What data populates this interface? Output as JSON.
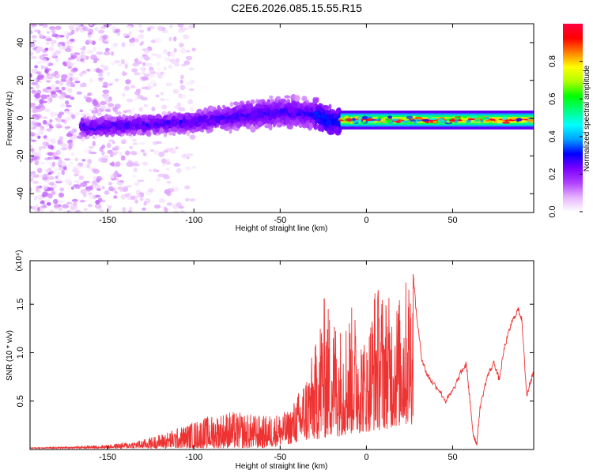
{
  "title": "C2E6.2026.085.15.55.R15",
  "chart_data": [
    {
      "id": "spectrogram",
      "type": "heatmap",
      "xlabel": "Height of straight line (km)",
      "ylabel": "Frequency (Hz)",
      "xlim": [
        -195,
        97
      ],
      "ylim": [
        -50,
        50
      ],
      "xticks": [
        "-150",
        "-100",
        "-50",
        "0",
        "50"
      ],
      "xtick_values": [
        -150,
        -100,
        -50,
        0,
        50
      ],
      "yticks": [
        "-40",
        "-20",
        "0",
        "20",
        "40"
      ],
      "ytick_values": [
        -40,
        -20,
        0,
        20,
        40
      ],
      "colorbar": {
        "label": "Normalized spectral amplitude",
        "range": [
          0,
          1
        ],
        "ticks": [
          "0.0",
          "0.2",
          "0.4",
          "0.6",
          "0.8"
        ],
        "tick_values": [
          0.0,
          0.2,
          0.4,
          0.6,
          0.8
        ],
        "stops": [
          "#ffffff",
          "#e6b3ff",
          "#b040ff",
          "#7a00ff",
          "#0000ff",
          "#00a0ff",
          "#00ffff",
          "#00ff80",
          "#00ff00",
          "#b0ff00",
          "#ffff00",
          "#ff8000",
          "#ff0000",
          "#ff0040"
        ]
      },
      "band_center_hz": [
        {
          "x": -195,
          "y": 0
        },
        {
          "x": -160,
          "y": -5
        },
        {
          "x": -140,
          "y": -4
        },
        {
          "x": -100,
          "y": -2
        },
        {
          "x": -75,
          "y": 1
        },
        {
          "x": -50,
          "y": 3
        },
        {
          "x": -30,
          "y": 2
        },
        {
          "x": -20,
          "y": -2
        },
        {
          "x": 0,
          "y": -1
        },
        {
          "x": 50,
          "y": -1
        },
        {
          "x": 97,
          "y": -1
        }
      ]
    },
    {
      "id": "snr",
      "type": "line",
      "xlabel": "Height of straight line (km)",
      "ylabel": "SNR (10 * v/v)",
      "multiplier": "(x10⁴)",
      "color": "#ee3333",
      "xlim": [
        -195,
        97
      ],
      "ylim": [
        0,
        1.95
      ],
      "xticks": [
        "-150",
        "-100",
        "-50",
        "0",
        "50"
      ],
      "xtick_values": [
        -150,
        -100,
        -50,
        0,
        50
      ],
      "yticks": [
        "0.5",
        "1.0",
        "1.5"
      ],
      "ytick_values": [
        0.5,
        1.0,
        1.5
      ],
      "series": [
        {
          "name": "SNR",
          "envelope": [
            {
              "x": -195,
              "y": 0.02
            },
            {
              "x": -170,
              "y": 0.03
            },
            {
              "x": -150,
              "y": 0.05
            },
            {
              "x": -130,
              "y": 0.1
            },
            {
              "x": -110,
              "y": 0.22
            },
            {
              "x": -95,
              "y": 0.33
            },
            {
              "x": -80,
              "y": 0.4
            },
            {
              "x": -60,
              "y": 0.35
            },
            {
              "x": -45,
              "y": 0.4
            },
            {
              "x": -38,
              "y": 0.65
            },
            {
              "x": -30,
              "y": 1.05
            },
            {
              "x": -25,
              "y": 1.6
            },
            {
              "x": -15,
              "y": 1.3
            },
            {
              "x": -8,
              "y": 1.5
            },
            {
              "x": 0,
              "y": 1.1
            },
            {
              "x": 5,
              "y": 1.75
            },
            {
              "x": 15,
              "y": 1.55
            },
            {
              "x": 20,
              "y": 1.6
            },
            {
              "x": 25,
              "y": 1.9
            },
            {
              "x": 27,
              "y": 1.85
            }
          ],
          "smooth": [
            {
              "x": 27,
              "y": 1.85
            },
            {
              "x": 29,
              "y": 1.4
            },
            {
              "x": 32,
              "y": 0.95
            },
            {
              "x": 35,
              "y": 0.78
            },
            {
              "x": 38,
              "y": 0.7
            },
            {
              "x": 42,
              "y": 0.62
            },
            {
              "x": 46,
              "y": 0.5
            },
            {
              "x": 50,
              "y": 0.6
            },
            {
              "x": 55,
              "y": 0.8
            },
            {
              "x": 58,
              "y": 0.88
            },
            {
              "x": 60,
              "y": 0.5
            },
            {
              "x": 62,
              "y": 0.15
            },
            {
              "x": 64,
              "y": 0.06
            },
            {
              "x": 66,
              "y": 0.45
            },
            {
              "x": 70,
              "y": 0.75
            },
            {
              "x": 74,
              "y": 0.9
            },
            {
              "x": 77,
              "y": 0.72
            },
            {
              "x": 80,
              "y": 1.05
            },
            {
              "x": 84,
              "y": 1.3
            },
            {
              "x": 88,
              "y": 1.45
            },
            {
              "x": 90,
              "y": 1.35
            },
            {
              "x": 93,
              "y": 0.55
            },
            {
              "x": 95,
              "y": 0.7
            },
            {
              "x": 97,
              "y": 0.8
            }
          ]
        }
      ]
    }
  ]
}
